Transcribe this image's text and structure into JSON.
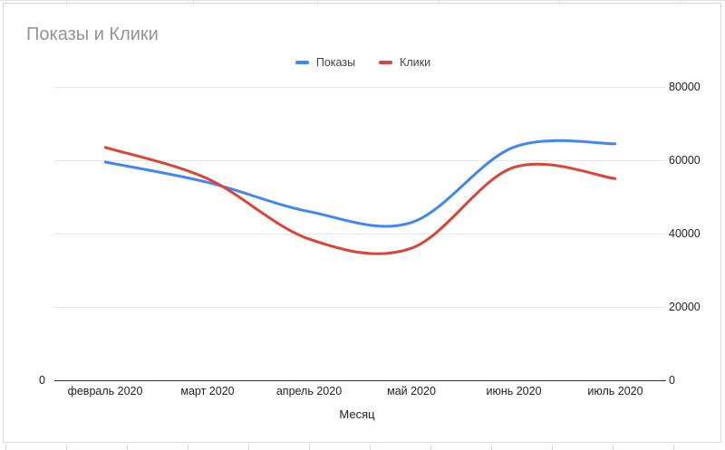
{
  "title": "Показы и Клики",
  "chart_data": {
    "type": "line",
    "smooth": true,
    "title": "Показы и Клики",
    "xlabel": "Месяц",
    "ylabel": "",
    "ylim": [
      0,
      80000
    ],
    "grid": true,
    "legend_position": "top-center",
    "categories": [
      "февраль 2020",
      "март 2020",
      "апрель 2020",
      "май 2020",
      "июнь 2020",
      "июль 2020"
    ],
    "series": [
      {
        "name": "Показы",
        "color": "#4285f4",
        "values": [
          59500,
          54000,
          46000,
          43000,
          63500,
          64500
        ]
      },
      {
        "name": "Клики",
        "color": "#db4437",
        "values": [
          63500,
          55000,
          38500,
          36000,
          58000,
          55000
        ]
      }
    ],
    "right_axis_ticks": [
      "80000",
      "60000",
      "40000",
      "20000",
      "0"
    ],
    "left_axis_ticks": [
      "0"
    ]
  },
  "colors": {
    "series_blue": "#4285f4",
    "series_red": "#db4437",
    "gridline": "#e6e6e6",
    "axis_baseline": "#333333",
    "title_text": "#949494",
    "label_text": "#222222",
    "card_border": "#d9d9d9"
  }
}
